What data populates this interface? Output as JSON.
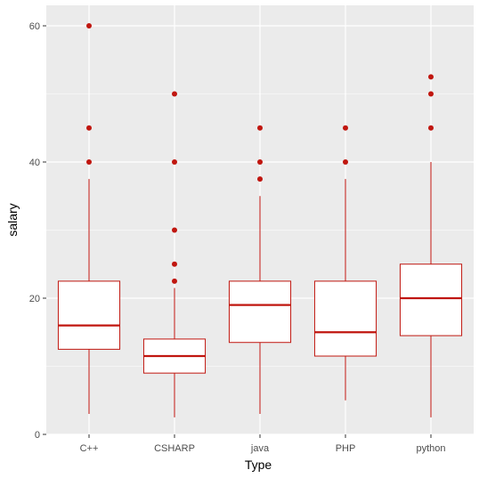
{
  "chart_data": {
    "type": "boxplot",
    "xlabel": "Type",
    "ylabel": "salary",
    "categories": [
      "C++",
      "CSHARP",
      "java",
      "PHP",
      "python"
    ],
    "ylim": [
      0,
      62.5
    ],
    "yticks": [
      0,
      20,
      40,
      60
    ],
    "grid": true,
    "legend": "none",
    "colors": {
      "box": "#c0160f",
      "panel": "#ebebeb",
      "grid": "#ffffff"
    },
    "boxes": [
      {
        "category": "C++",
        "whisker_low": 3,
        "q1": 12.5,
        "median": 16,
        "q3": 22.5,
        "whisker_high": 37.5,
        "outliers": [
          40,
          45,
          60
        ]
      },
      {
        "category": "CSHARP",
        "whisker_low": 2.5,
        "q1": 9,
        "median": 11.5,
        "q3": 14,
        "whisker_high": 21.5,
        "outliers": [
          22.5,
          25,
          30,
          40,
          50
        ]
      },
      {
        "category": "java",
        "whisker_low": 3,
        "q1": 13.5,
        "median": 19,
        "q3": 22.5,
        "whisker_high": 35,
        "outliers": [
          37.5,
          40,
          45
        ]
      },
      {
        "category": "PHP",
        "whisker_low": 5,
        "q1": 11.5,
        "median": 15,
        "q3": 22.5,
        "whisker_high": 37.5,
        "outliers": [
          40,
          45
        ]
      },
      {
        "category": "python",
        "whisker_low": 2.5,
        "q1": 14.5,
        "median": 20,
        "q3": 25,
        "whisker_high": 40,
        "outliers": [
          45,
          50,
          52.5
        ]
      }
    ]
  }
}
